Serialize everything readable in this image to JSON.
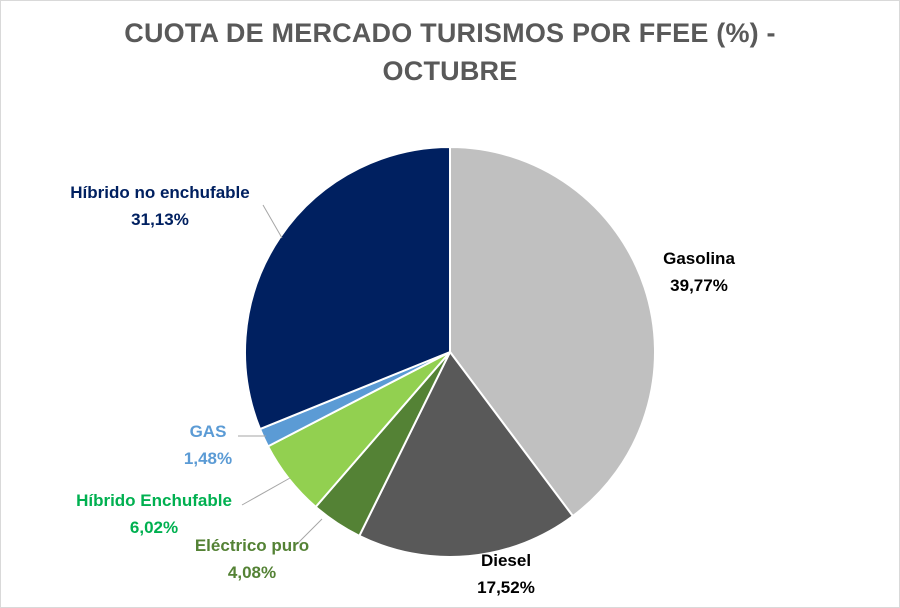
{
  "chart_data": {
    "type": "pie",
    "title_line1": "CUOTA DE MERCADO TURISMOS POR FFEE (%) -",
    "title_line2": "OCTUBRE",
    "slices": [
      {
        "name": "Gasolina",
        "value": 39.77,
        "value_label": "39,77%",
        "color": "#c0c0c0",
        "label_color": "#000000"
      },
      {
        "name": "Diesel",
        "value": 17.52,
        "value_label": "17,52%",
        "color": "#595959",
        "label_color": "#000000"
      },
      {
        "name": "Eléctrico puro",
        "value": 4.08,
        "value_label": "4,08%",
        "color": "#548235",
        "label_color": "#548235"
      },
      {
        "name": "Híbrido Enchufable",
        "value": 6.02,
        "value_label": "6,02%",
        "color": "#92d050",
        "label_color": "#00b050"
      },
      {
        "name": "GAS",
        "value": 1.48,
        "value_label": "1,48%",
        "color": "#5b9bd5",
        "label_color": "#5b9bd5"
      },
      {
        "name": "Híbrido no enchufable",
        "value": 31.13,
        "value_label": "31,13%",
        "color": "#002060",
        "label_color": "#002060"
      }
    ]
  }
}
